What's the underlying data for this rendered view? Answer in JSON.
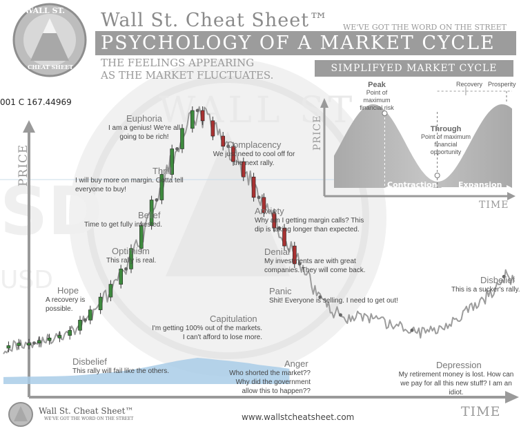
{
  "header": {
    "logo_text_top": "WALL ST.",
    "logo_text_bottom": "CHEAT SHEET",
    "brand": "Wall St. Cheat Sheet™",
    "slogan": "WE'VE GOT THE WORD ON THE STREET",
    "title": "PSYCHOLOGY OF A MARKET CYCLE",
    "subtitle_line1": "THE FEELINGS APPEARING",
    "subtitle_line2": "AS THE MARKET FLUCTUATES."
  },
  "ticker_fragment": "001 C 167.44969",
  "background_watermark": {
    "left": "SD",
    "left2": "USD",
    "seal": "WALL ST."
  },
  "chart_data": [
    {
      "type": "line",
      "title": "PSYCHOLOGY OF A MARKET CYCLE",
      "xlabel": "TIME",
      "ylabel": "PRICE",
      "series": [
        {
          "values": [
            7,
            8,
            9,
            9,
            10,
            11,
            12,
            14,
            18,
            22,
            27,
            32,
            38,
            46,
            55,
            65,
            75,
            85,
            93,
            100,
            96,
            90,
            86,
            80,
            74,
            66,
            60,
            54,
            47,
            40,
            33,
            27,
            22,
            20,
            19,
            20,
            18,
            17,
            16,
            15,
            14,
            13,
            14,
            16,
            18,
            20,
            23,
            26,
            30,
            35,
            33
          ]
        }
      ],
      "stages": [
        {
          "name": "Disbelief",
          "note": "This rally will fail like the others.",
          "at": 3
        },
        {
          "name": "Hope",
          "note": "A recovery is possible.",
          "at": 8
        },
        {
          "name": "Optimism",
          "note": "This rally is real.",
          "at": 12
        },
        {
          "name": "Belief",
          "note": "Time to get fully invested.",
          "at": 15
        },
        {
          "name": "Thrill",
          "note": "I will buy more on margin. Gotta tell everyone to buy!",
          "at": 17
        },
        {
          "name": "Euphoria",
          "note": "I am a genius! We're all going to be rich!",
          "at": 19
        },
        {
          "name": "Complacency",
          "note": "We just need to cool off for the next rally.",
          "at": 22
        },
        {
          "name": "Anxiety",
          "note": "Why am I getting margin calls? This dip is taking longer than expected.",
          "at": 25
        },
        {
          "name": "Denial",
          "note": "My investments are with great companies. They will come back.",
          "at": 27
        },
        {
          "name": "Panic",
          "note": "Shit! Everyone is selling. I need to get out!",
          "at": 29
        },
        {
          "name": "Capitulation",
          "note": "I'm getting 100% out of the markets. I can't afford to lose more.",
          "at": 31
        },
        {
          "name": "Anger",
          "note": "Who shorted the market?? Why did the government allow this to happen??",
          "at": 33
        },
        {
          "name": "Depression",
          "note": "My retirement money is lost. How can we pay for all this new stuff? I am an idiot.",
          "at": 40
        },
        {
          "name": "Disbelief",
          "note": "This is a sucker's rally.",
          "at": 49
        }
      ]
    },
    {
      "type": "area",
      "title": "SIMPLIFYED MARKET CYCLE",
      "xlabel": "TIME",
      "ylabel": "PRICE",
      "annotations": {
        "peak": "Peak",
        "peak_note": "Point of maximum financial risk",
        "through": "Through",
        "through_note": "Point of maximum financial opportunity",
        "contraction": "Contraction",
        "expansion": "Expansion",
        "recovery": "Recovery",
        "prosperity": "Prosperity"
      }
    }
  ],
  "footer": {
    "brand": "Wall St. Cheat Sheet™",
    "slogan": "WE'VE GOT THE WORD ON THE STREET",
    "url": "www.wallstcheatsheet.com"
  }
}
